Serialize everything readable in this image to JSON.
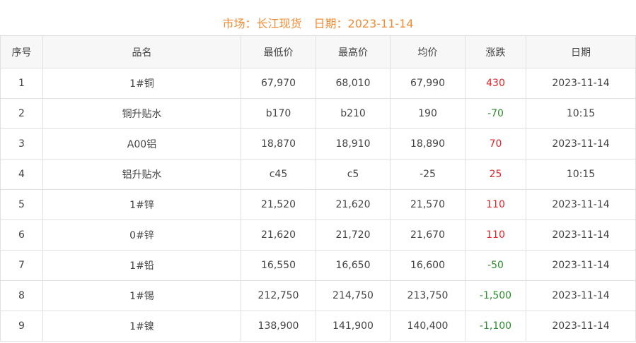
{
  "header": {
    "market_label": "市场：长江现货",
    "date_label": "日期：2023-11-14"
  },
  "colors": {
    "title": "#f08c35",
    "up": "#e0262b",
    "down": "#2e8b2e"
  },
  "table": {
    "columns": [
      "序号",
      "品名",
      "最低价",
      "最高价",
      "均价",
      "涨跌",
      "日期"
    ],
    "rows": [
      {
        "no": "1",
        "name": "1#铜",
        "low": "67,970",
        "high": "68,010",
        "avg": "67,990",
        "change": "430",
        "dir": "up",
        "date": "2023-11-14"
      },
      {
        "no": "2",
        "name": "铜升贴水",
        "low": "b170",
        "high": "b210",
        "avg": "190",
        "change": "-70",
        "dir": "down",
        "date": "10:15"
      },
      {
        "no": "3",
        "name": "A00铝",
        "low": "18,870",
        "high": "18,910",
        "avg": "18,890",
        "change": "70",
        "dir": "up",
        "date": "2023-11-14"
      },
      {
        "no": "4",
        "name": "铝升贴水",
        "low": "c45",
        "high": "c5",
        "avg": "-25",
        "change": "25",
        "dir": "up",
        "date": "10:15"
      },
      {
        "no": "5",
        "name": "1#锌",
        "low": "21,520",
        "high": "21,620",
        "avg": "21,570",
        "change": "110",
        "dir": "up",
        "date": "2023-11-14"
      },
      {
        "no": "6",
        "name": "0#锌",
        "low": "21,620",
        "high": "21,720",
        "avg": "21,670",
        "change": "110",
        "dir": "up",
        "date": "2023-11-14"
      },
      {
        "no": "7",
        "name": "1#铅",
        "low": "16,550",
        "high": "16,650",
        "avg": "16,600",
        "change": "-50",
        "dir": "down",
        "date": "2023-11-14"
      },
      {
        "no": "8",
        "name": "1#锡",
        "low": "212,750",
        "high": "214,750",
        "avg": "213,750",
        "change": "-1,500",
        "dir": "down",
        "date": "2023-11-14"
      },
      {
        "no": "9",
        "name": "1#镍",
        "low": "138,900",
        "high": "141,900",
        "avg": "140,400",
        "change": "-1,100",
        "dir": "down",
        "date": "2023-11-14"
      }
    ]
  }
}
